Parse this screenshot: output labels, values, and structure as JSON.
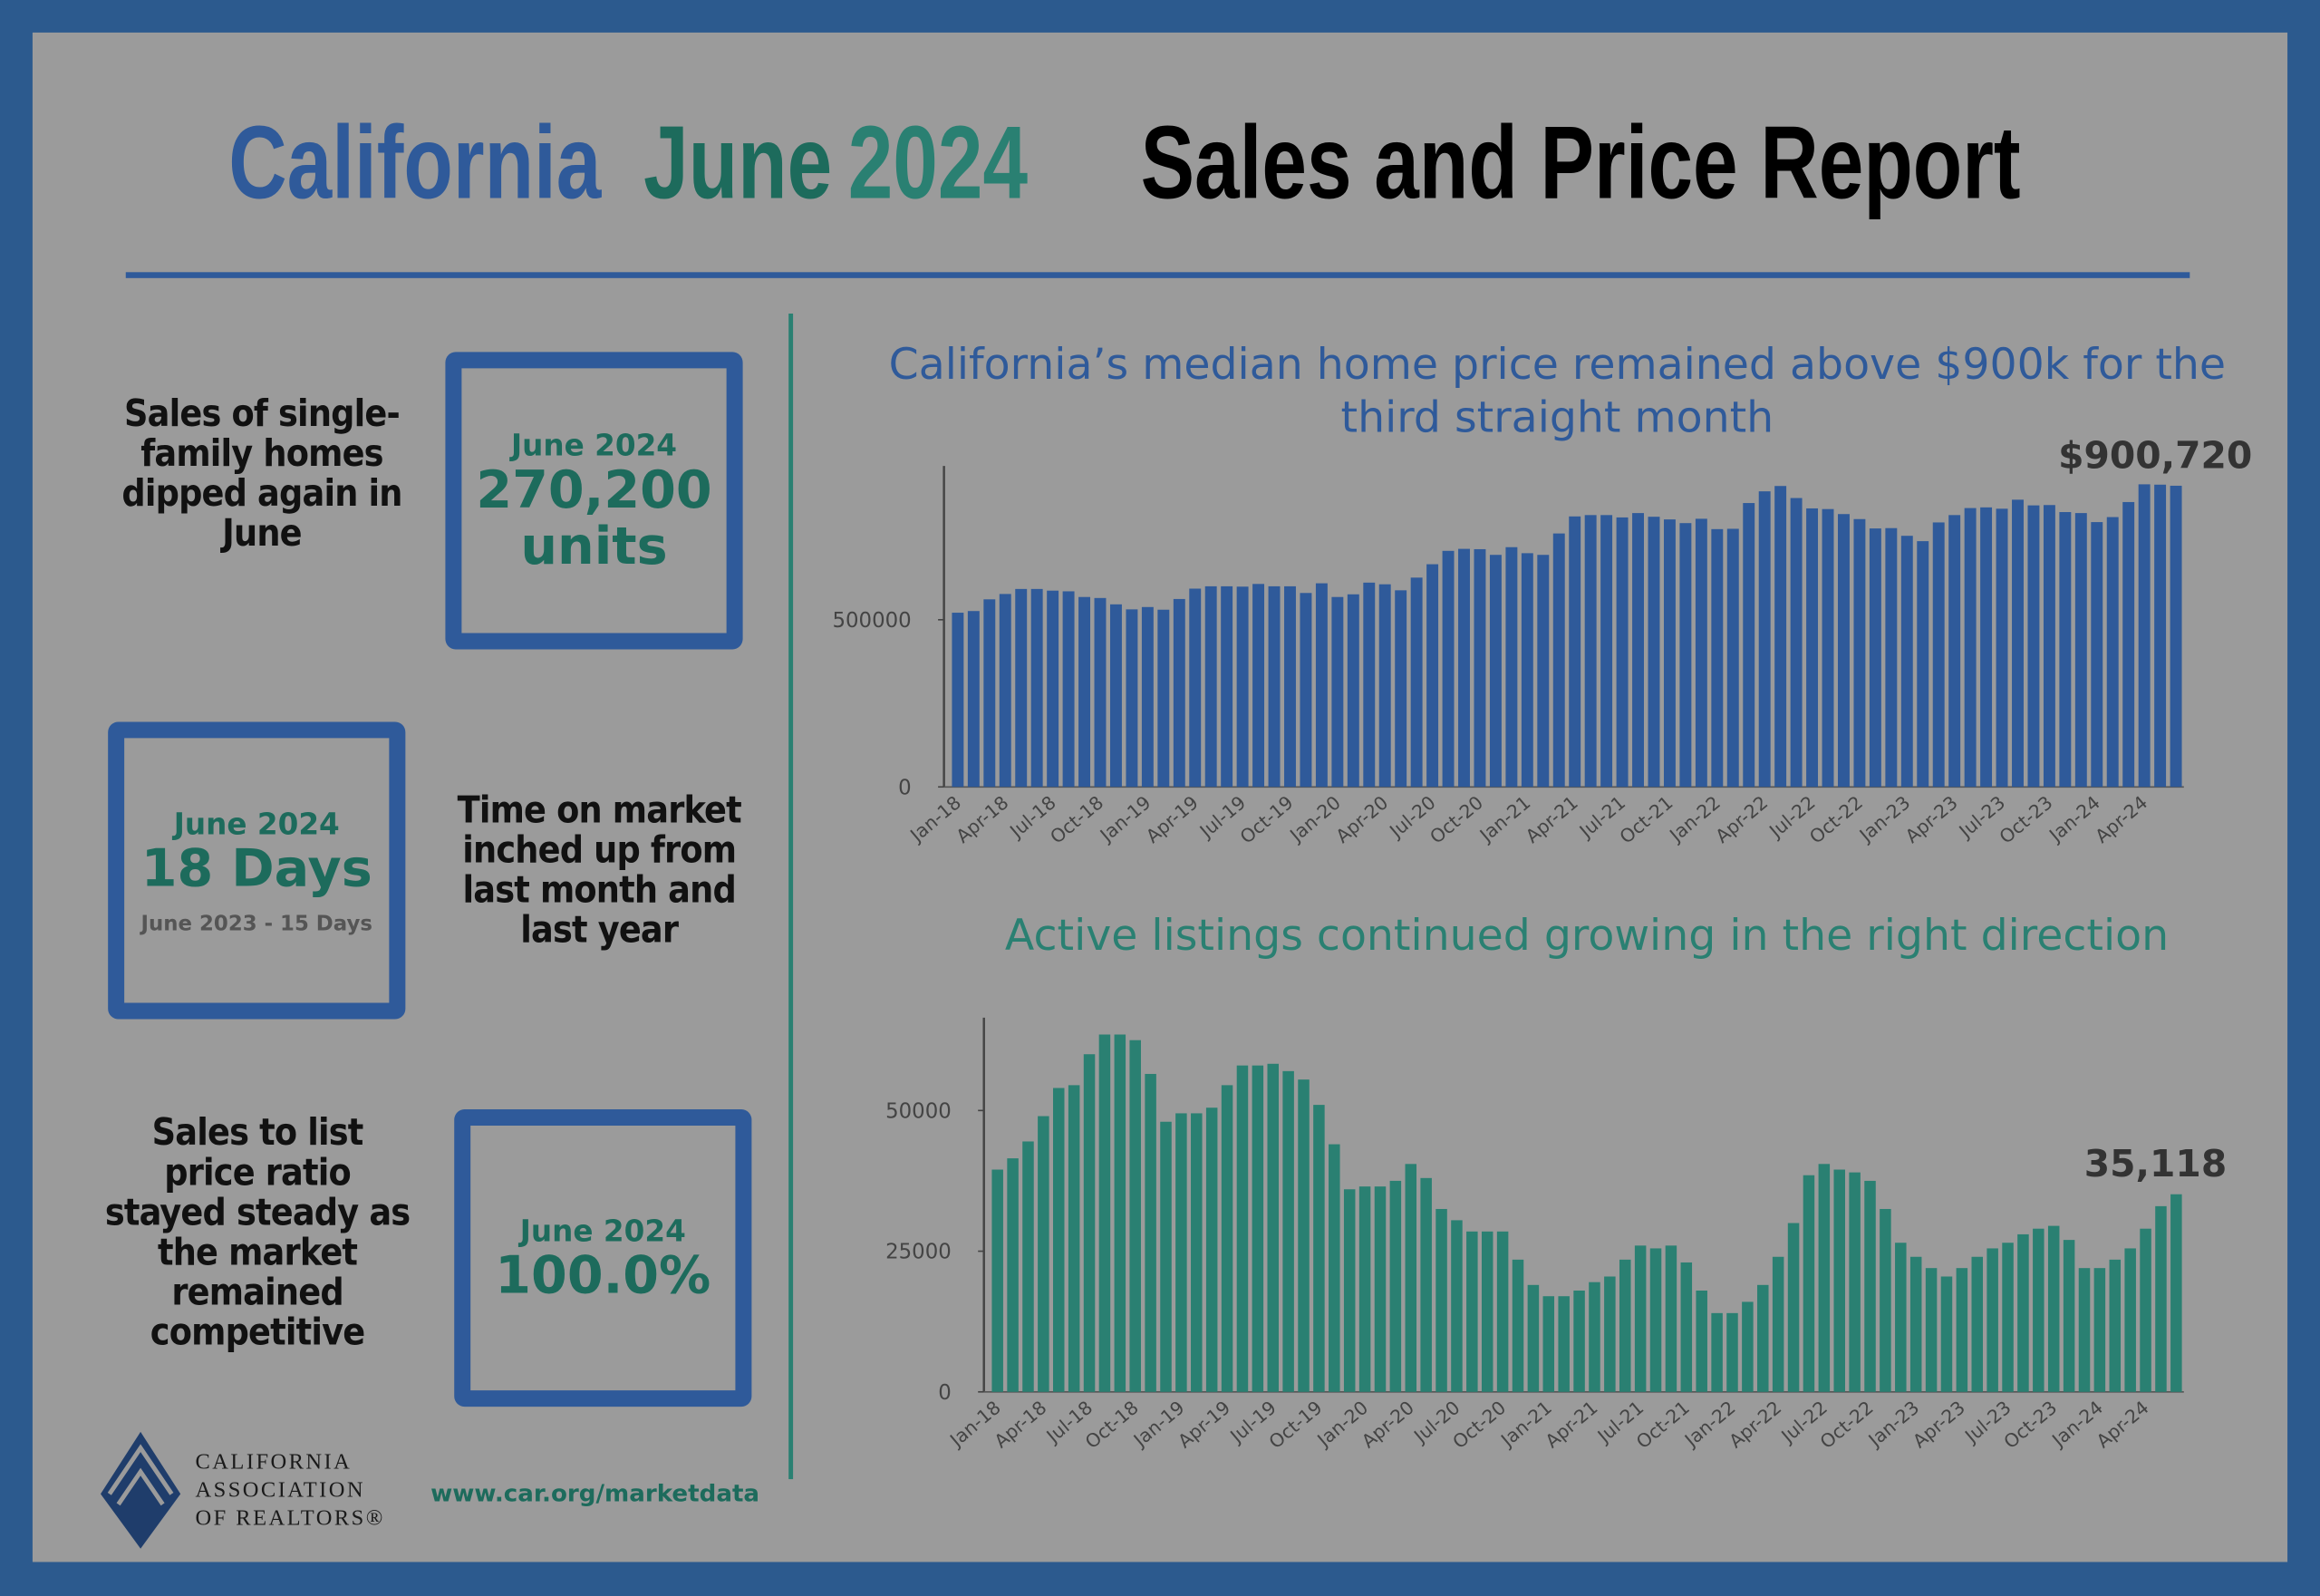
{
  "header": {
    "title_parts": [
      {
        "text": "California",
        "color": "#2f5a9a"
      },
      {
        "text": "June",
        "color": "#1d6b5c"
      },
      {
        "text": "2024",
        "color": "#2a8072"
      },
      {
        "text": "Sales and Price Report",
        "color": "#000000"
      }
    ]
  },
  "stats": [
    {
      "description": "Sales of single-family homes dipped again in June",
      "period": "June 2024",
      "value": "270,200",
      "unit": "units"
    },
    {
      "description": "Time on market inched up from last month and last year",
      "period": "June 2024",
      "value": "18 Days",
      "comparison": "June 2023 - 15 Days"
    },
    {
      "description": "Sales to list price ratio stayed steady as the market remained competitive",
      "period": "June 2024",
      "value": "100.0%"
    }
  ],
  "footer": {
    "logo_lines": [
      "CALIFORNIA",
      "ASSOCIATION",
      "OF REALTORS®"
    ],
    "url": "www.car.org/marketdata"
  },
  "chart_data": [
    {
      "type": "bar",
      "title": "California’s median home price remained above $900k for the third straight month",
      "color": "#2f5a9a",
      "categories": [
        "Jan-18",
        null,
        null,
        "Apr-18",
        null,
        null,
        "Jul-18",
        null,
        null,
        "Oct-18",
        null,
        null,
        "Jan-19",
        null,
        null,
        "Apr-19",
        null,
        null,
        "Jul-19",
        null,
        null,
        "Oct-19",
        null,
        null,
        "Jan-20",
        null,
        null,
        "Apr-20",
        null,
        null,
        "Jul-20",
        null,
        null,
        "Oct-20",
        null,
        null,
        "Jan-21",
        null,
        null,
        "Apr-21",
        null,
        null,
        "Jul-21",
        null,
        null,
        "Oct-21",
        null,
        null,
        "Jan-22",
        null,
        null,
        "Apr-22",
        null,
        null,
        "Jul-22",
        null,
        null,
        "Oct-22",
        null,
        null,
        "Jan-23",
        null,
        null,
        "Apr-23",
        null,
        null,
        "Jul-23",
        null,
        null,
        "Oct-23",
        null,
        null,
        "Jan-24",
        null,
        null,
        "Apr-24",
        null,
        null
      ],
      "values": [
        521000,
        526000,
        561000,
        577000,
        592000,
        592000,
        587000,
        585000,
        568000,
        565000,
        546000,
        531000,
        538000,
        530000,
        562000,
        593000,
        600000,
        600000,
        599000,
        607000,
        600000,
        600000,
        580000,
        609000,
        568000,
        576000,
        611000,
        606000,
        588000,
        626000,
        666000,
        706000,
        712000,
        711000,
        694000,
        717000,
        699000,
        694000,
        758000,
        809000,
        813000,
        813000,
        806000,
        819000,
        808000,
        800000,
        789000,
        802000,
        771000,
        772000,
        849000,
        884000,
        900000,
        864000,
        833000,
        831000,
        816000,
        801000,
        773000,
        774000,
        751000,
        735000,
        791000,
        813000,
        834000,
        836000,
        832000,
        859000,
        842000,
        843000,
        822000,
        819000,
        792000,
        807000,
        852000,
        905000,
        904000,
        900720
      ],
      "value_labels": [
        null,
        null,
        null,
        null,
        null,
        null,
        null,
        null,
        null,
        null,
        null,
        null,
        null,
        null,
        null,
        null,
        null,
        null,
        null,
        null,
        null,
        null,
        null,
        null,
        null,
        null,
        null,
        null,
        null,
        null,
        null,
        null,
        null,
        null,
        null,
        null,
        null,
        null,
        null,
        null,
        null,
        null,
        null,
        null,
        null,
        null,
        null,
        null,
        null,
        null,
        null,
        null,
        null,
        null,
        null,
        null,
        null,
        null,
        null,
        null,
        null,
        null,
        null,
        null,
        null,
        null,
        null,
        null,
        null,
        null,
        null,
        null,
        null,
        null,
        null,
        null,
        null,
        "$900,720"
      ],
      "ylim": [
        0,
        960000
      ],
      "yticks": [
        0,
        500000
      ]
    },
    {
      "type": "bar",
      "title": "Active listings continued growing in the right direction",
      "color": "#2a8072",
      "categories": [
        "Jan-18",
        null,
        null,
        "Apr-18",
        null,
        null,
        "Jul-18",
        null,
        null,
        "Oct-18",
        null,
        null,
        "Jan-19",
        null,
        null,
        "Apr-19",
        null,
        null,
        "Jul-19",
        null,
        null,
        "Oct-19",
        null,
        null,
        "Jan-20",
        null,
        null,
        "Apr-20",
        null,
        null,
        "Jul-20",
        null,
        null,
        "Oct-20",
        null,
        null,
        "Jan-21",
        null,
        null,
        "Apr-21",
        null,
        null,
        "Jul-21",
        null,
        null,
        "Oct-21",
        null,
        null,
        "Jan-22",
        null,
        null,
        "Apr-22",
        null,
        null,
        "Jul-22",
        null,
        null,
        "Oct-22",
        null,
        null,
        "Jan-23",
        null,
        null,
        "Apr-23",
        null,
        null,
        "Jul-23",
        null,
        null,
        "Oct-23",
        null,
        null,
        "Jan-24",
        null,
        null,
        "Apr-24",
        null,
        null
      ],
      "values": [
        39500,
        41500,
        44500,
        49000,
        54000,
        54500,
        60000,
        63500,
        63500,
        62500,
        56500,
        48000,
        49500,
        49500,
        50500,
        54500,
        58000,
        58000,
        58300,
        57000,
        55500,
        51000,
        44000,
        36000,
        36500,
        36500,
        37500,
        40500,
        38000,
        32500,
        30500,
        28500,
        28500,
        28500,
        23500,
        19000,
        17000,
        17000,
        18000,
        19500,
        20500,
        23500,
        26000,
        25500,
        26000,
        23000,
        18000,
        14000,
        14000,
        16000,
        19000,
        24000,
        30000,
        38500,
        40500,
        39500,
        39000,
        37500,
        32500,
        26500,
        24000,
        22000,
        20500,
        22000,
        24000,
        25500,
        26500,
        28000,
        29000,
        29500,
        27000,
        22000,
        22000,
        23500,
        25500,
        29000,
        33000,
        35118
      ],
      "value_labels": [
        null,
        null,
        null,
        null,
        null,
        null,
        null,
        null,
        null,
        null,
        null,
        null,
        null,
        null,
        null,
        null,
        null,
        null,
        null,
        null,
        null,
        null,
        null,
        null,
        null,
        null,
        null,
        null,
        null,
        null,
        null,
        null,
        null,
        null,
        null,
        null,
        null,
        null,
        null,
        null,
        null,
        null,
        null,
        null,
        null,
        null,
        null,
        null,
        null,
        null,
        null,
        null,
        null,
        null,
        null,
        null,
        null,
        null,
        null,
        null,
        null,
        null,
        null,
        null,
        null,
        null,
        null,
        null,
        null,
        null,
        null,
        null,
        null,
        null,
        null,
        null,
        null,
        "35,118"
      ],
      "ylim": [
        0,
        66500
      ],
      "yticks": [
        0,
        25000,
        50000
      ]
    }
  ]
}
